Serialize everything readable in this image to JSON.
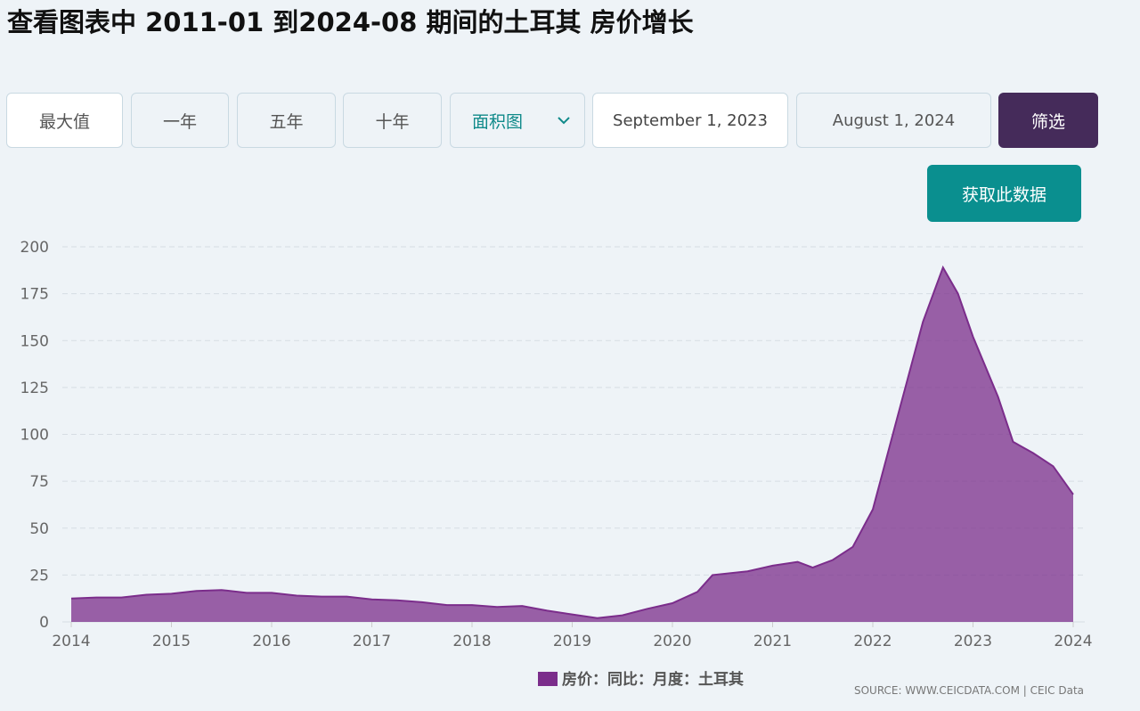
{
  "header": {
    "title": "查看图表中 2011-01 到2024-08 期间的土耳其 房价增长"
  },
  "controls": {
    "ranges": [
      "最大值",
      "一年",
      "五年",
      "十年"
    ],
    "chart_type": "面积图",
    "start_date": "September 1, 2023",
    "end_date": "August 1, 2024",
    "filter": "筛选",
    "get_data": "获取此数据"
  },
  "chart_data": {
    "type": "area",
    "x": [
      2014.0,
      2014.25,
      2014.5,
      2014.75,
      2015.0,
      2015.25,
      2015.5,
      2015.75,
      2016.0,
      2016.25,
      2016.5,
      2016.75,
      2017.0,
      2017.25,
      2017.5,
      2017.75,
      2018.0,
      2018.25,
      2018.5,
      2018.75,
      2019.0,
      2019.25,
      2019.5,
      2019.75,
      2020.0,
      2020.25,
      2020.4,
      2020.75,
      2021.0,
      2021.25,
      2021.4,
      2021.6,
      2021.8,
      2022.0,
      2022.25,
      2022.5,
      2022.7,
      2022.85,
      2023.0,
      2023.25,
      2023.4,
      2023.6,
      2023.8,
      2024.0
    ],
    "series": [
      {
        "name": "房价：同比：月度：土耳其",
        "color": "#7b2d8b",
        "values": [
          12.5,
          13,
          13,
          14.5,
          15,
          16.5,
          17,
          15.5,
          15.5,
          14,
          13.5,
          13.5,
          12,
          11.5,
          10.5,
          9,
          9,
          8,
          8.5,
          6,
          4,
          2,
          3.5,
          7,
          10,
          16,
          25,
          27,
          30,
          32,
          29,
          33,
          40,
          60,
          110,
          160,
          189,
          175,
          152,
          120,
          96,
          90,
          83,
          68
        ]
      }
    ],
    "xlim": [
      2014,
      2024
    ],
    "xticks": [
      2014,
      2015,
      2016,
      2017,
      2018,
      2019,
      2020,
      2021,
      2022,
      2023,
      2024
    ],
    "ylim": [
      0,
      200
    ],
    "yticks": [
      0,
      25,
      50,
      75,
      100,
      125,
      150,
      175,
      200
    ],
    "grid": true,
    "source": "SOURCE: WWW.CEICDATA.COM | CEIC Data"
  }
}
